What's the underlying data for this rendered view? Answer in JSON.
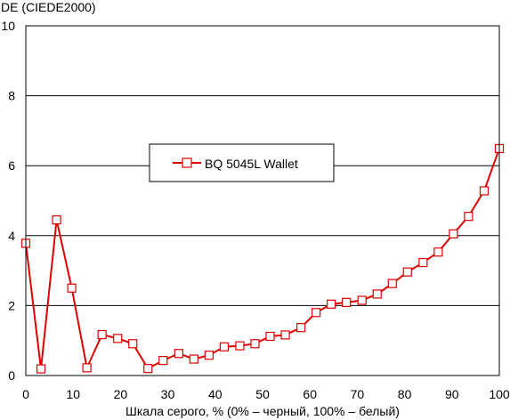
{
  "chart_data": {
    "type": "line",
    "title": "",
    "ylabel": "DE (CIEDE2000)",
    "xlabel": "Шкала серого, % (0% – черный, 100% – белый)",
    "xlim": [
      0,
      100
    ],
    "ylim": [
      0,
      10
    ],
    "x_ticks": [
      0,
      10,
      20,
      30,
      40,
      50,
      60,
      70,
      80,
      90,
      100
    ],
    "y_ticks": [
      0,
      2,
      4,
      6,
      8,
      10
    ],
    "grid": "horizontal",
    "legend": "center-left",
    "series": [
      {
        "name": "BQ 5045L Wallet",
        "color": "#e00000",
        "marker": "square-open",
        "x": [
          0,
          3.2,
          6.5,
          9.7,
          12.9,
          16.1,
          19.4,
          22.6,
          25.8,
          29.0,
          32.3,
          35.5,
          38.7,
          41.9,
          45.2,
          48.4,
          51.6,
          54.8,
          58.1,
          61.3,
          64.5,
          67.7,
          71.0,
          74.2,
          77.4,
          80.6,
          83.9,
          87.1,
          90.3,
          93.5,
          96.8,
          100
        ],
        "y": [
          3.78,
          0.19,
          4.45,
          2.5,
          0.22,
          1.17,
          1.06,
          0.91,
          0.2,
          0.43,
          0.63,
          0.47,
          0.58,
          0.82,
          0.85,
          0.91,
          1.12,
          1.16,
          1.37,
          1.8,
          2.04,
          2.09,
          2.15,
          2.33,
          2.63,
          2.96,
          3.23,
          3.53,
          4.05,
          4.55,
          5.28,
          6.49
        ]
      }
    ]
  }
}
